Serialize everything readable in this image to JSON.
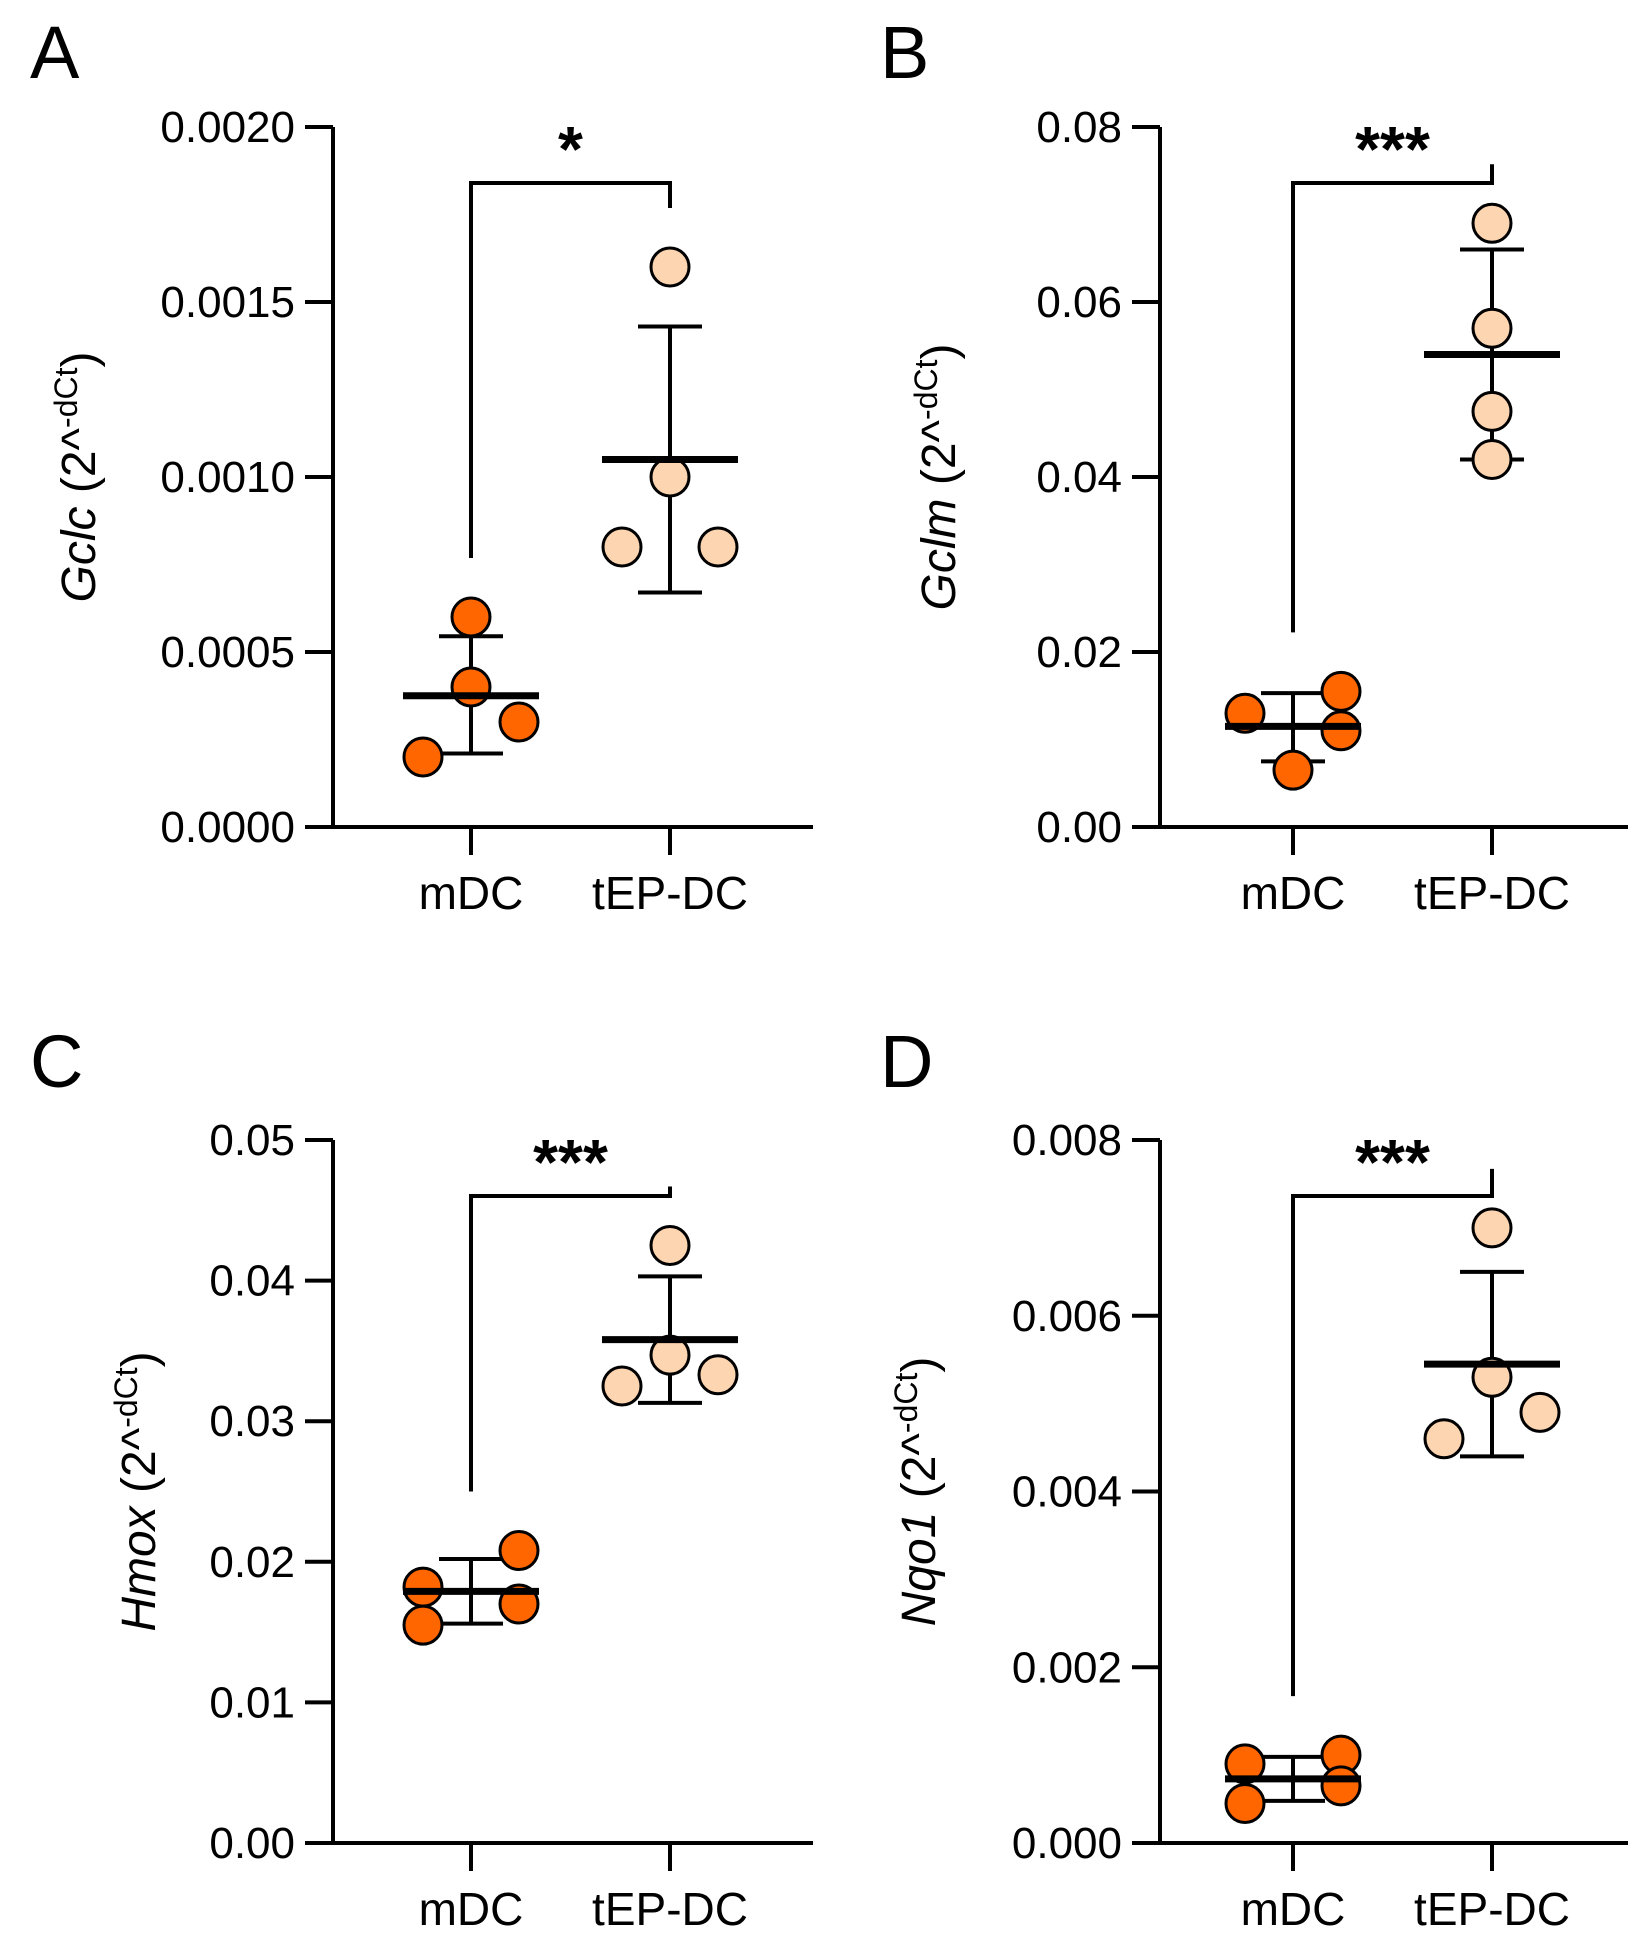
{
  "colors": {
    "mdc_fill": "#FF6600",
    "tep_fill": "#FDD5B1",
    "stroke": "#000000"
  },
  "chart_data": [
    {
      "panel": "A",
      "type": "scatter",
      "gene": "Gclc",
      "ylabel_suffix": "(2^-dCt)",
      "categories": [
        "mDC",
        "tEP-DC"
      ],
      "ylim": [
        0,
        0.002
      ],
      "yticks": [
        "0.0000",
        "0.0005",
        "0.0010",
        "0.0015",
        "0.0020"
      ],
      "significance": "*",
      "series": [
        {
          "name": "mDC",
          "points": [
            {
              "dx": 0,
              "y": 0.0006
            },
            {
              "dx": 0,
              "y": 0.0004
            },
            {
              "dx": 1,
              "y": 0.0003
            },
            {
              "dx": -1,
              "y": 0.0002
            }
          ],
          "mean": 0.000375,
          "sd_low": 0.00021,
          "sd_high": 0.000545
        },
        {
          "name": "tEP-DC",
          "points": [
            {
              "dx": 0,
              "y": 0.0016
            },
            {
              "dx": 0,
              "y": 0.001
            },
            {
              "dx": -1,
              "y": 0.0008
            },
            {
              "dx": 1,
              "y": 0.0008
            }
          ],
          "mean": 0.00105,
          "sd_low": 0.00067,
          "sd_high": 0.00143
        }
      ]
    },
    {
      "panel": "B",
      "type": "scatter",
      "gene": "Gclm",
      "ylabel_suffix": "(2^-dCt)",
      "categories": [
        "mDC",
        "tEP-DC"
      ],
      "ylim": [
        0,
        0.08
      ],
      "yticks": [
        "0.00",
        "0.02",
        "0.04",
        "0.06",
        "0.08"
      ],
      "significance": "***",
      "series": [
        {
          "name": "mDC",
          "points": [
            {
              "dx": -1,
              "y": 0.013
            },
            {
              "dx": 1,
              "y": 0.0155
            },
            {
              "dx": 1,
              "y": 0.011
            },
            {
              "dx": 0,
              "y": 0.0065
            }
          ],
          "mean": 0.0115,
          "sd_low": 0.0075,
          "sd_high": 0.0153
        },
        {
          "name": "tEP-DC",
          "points": [
            {
              "dx": 0,
              "y": 0.069
            },
            {
              "dx": 0,
              "y": 0.057
            },
            {
              "dx": 0,
              "y": 0.0475
            },
            {
              "dx": 0,
              "y": 0.042
            }
          ],
          "mean": 0.054,
          "sd_low": 0.042,
          "sd_high": 0.066
        }
      ]
    },
    {
      "panel": "C",
      "type": "scatter",
      "gene": "Hmox",
      "ylabel_suffix": "(2^-dCt)",
      "categories": [
        "mDC",
        "tEP-DC"
      ],
      "ylim": [
        0,
        0.05
      ],
      "yticks": [
        "0.00",
        "0.01",
        "0.02",
        "0.03",
        "0.04",
        "0.05"
      ],
      "significance": "***",
      "series": [
        {
          "name": "mDC",
          "points": [
            {
              "dx": -1,
              "y": 0.0182
            },
            {
              "dx": -1,
              "y": 0.0155
            },
            {
              "dx": 1,
              "y": 0.0208
            },
            {
              "dx": 1,
              "y": 0.017
            }
          ],
          "mean": 0.0179,
          "sd_low": 0.0156,
          "sd_high": 0.0202
        },
        {
          "name": "tEP-DC",
          "points": [
            {
              "dx": 0,
              "y": 0.0425
            },
            {
              "dx": 0,
              "y": 0.0347
            },
            {
              "dx": -1,
              "y": 0.0325
            },
            {
              "dx": 1,
              "y": 0.0333
            }
          ],
          "mean": 0.0358,
          "sd_low": 0.0313,
          "sd_high": 0.0403
        }
      ]
    },
    {
      "panel": "D",
      "type": "scatter",
      "gene": "Nqo1",
      "ylabel_suffix": "(2^-dCt)",
      "categories": [
        "mDC",
        "tEP-DC"
      ],
      "ylim": [
        0,
        0.008
      ],
      "yticks": [
        "0.000",
        "0.002",
        "0.004",
        "0.006",
        "0.008"
      ],
      "significance": "***",
      "series": [
        {
          "name": "mDC",
          "points": [
            {
              "dx": -1,
              "y": 0.0009
            },
            {
              "dx": -1,
              "y": 0.00045
            },
            {
              "dx": 1,
              "y": 0.001
            },
            {
              "dx": 1,
              "y": 0.00065
            }
          ],
          "mean": 0.00073,
          "sd_low": 0.00048,
          "sd_high": 0.00098
        },
        {
          "name": "tEP-DC",
          "points": [
            {
              "dx": 0,
              "y": 0.007
            },
            {
              "dx": 0,
              "y": 0.0053
            },
            {
              "dx": -1,
              "y": 0.0046
            },
            {
              "dx": 1,
              "y": 0.0049
            }
          ],
          "mean": 0.00545,
          "sd_low": 0.0044,
          "sd_high": 0.0065
        }
      ]
    }
  ]
}
